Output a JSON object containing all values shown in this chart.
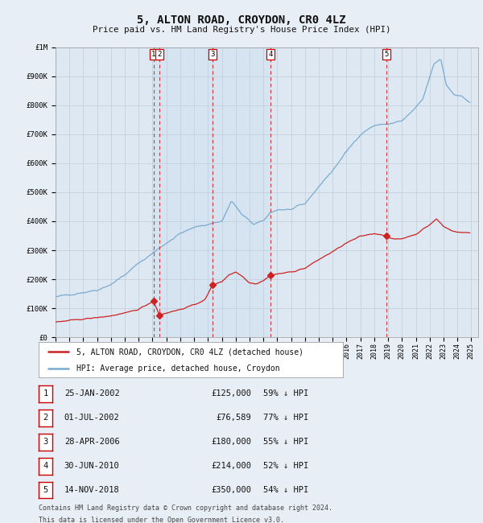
{
  "title": "5, ALTON ROAD, CROYDON, CR0 4LZ",
  "subtitle": "Price paid vs. HM Land Registry's House Price Index (HPI)",
  "bg_color": "#e8eef5",
  "plot_bg_color": "#dde8f3",
  "grid_color": "#c0ccd8",
  "hpi_color": "#7aabcf",
  "price_color": "#cc2222",
  "transactions": [
    {
      "num": 1,
      "date_dec": 2002.069,
      "price": 125000,
      "label": "25-JAN-2002",
      "pct": "59% ↓ HPI"
    },
    {
      "num": 2,
      "date_dec": 2002.496,
      "price": 76589,
      "label": "01-JUL-2002",
      "pct": "77% ↓ HPI"
    },
    {
      "num": 3,
      "date_dec": 2006.319,
      "price": 180000,
      "label": "28-APR-2006",
      "pct": "55% ↓ HPI"
    },
    {
      "num": 4,
      "date_dec": 2010.496,
      "price": 214000,
      "label": "30-JUN-2010",
      "pct": "52% ↓ HPI"
    },
    {
      "num": 5,
      "date_dec": 2018.869,
      "price": 350000,
      "label": "14-NOV-2018",
      "pct": "54% ↓ HPI"
    }
  ],
  "legend_label_price": "5, ALTON ROAD, CROYDON, CR0 4LZ (detached house)",
  "legend_label_hpi": "HPI: Average price, detached house, Croydon",
  "footer1": "Contains HM Land Registry data © Crown copyright and database right 2024.",
  "footer2": "This data is licensed under the Open Government Licence v3.0.",
  "ylim": [
    0,
    1000000
  ],
  "yticks": [
    0,
    100000,
    200000,
    300000,
    400000,
    500000,
    600000,
    700000,
    800000,
    900000,
    1000000
  ],
  "ytick_labels": [
    "£0",
    "£100K",
    "£200K",
    "£300K",
    "£400K",
    "£500K",
    "£600K",
    "£700K",
    "£800K",
    "£900K",
    "£1M"
  ],
  "xmin": 1995,
  "xmax": 2025.5
}
